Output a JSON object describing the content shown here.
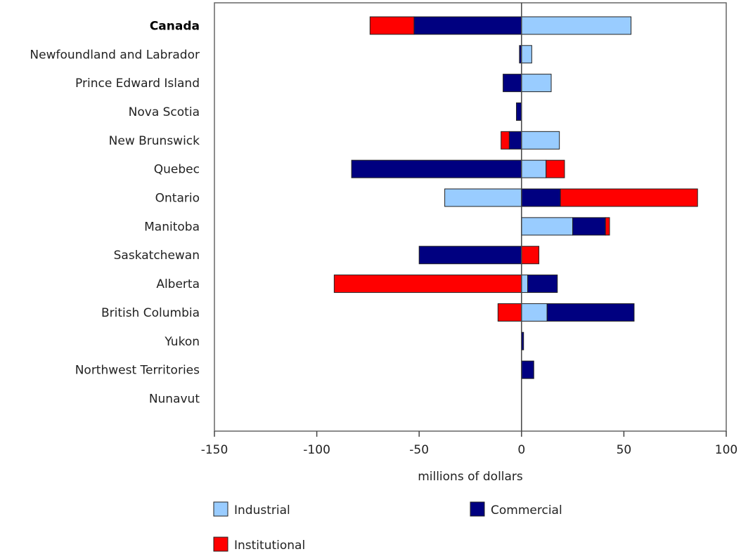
{
  "chart_data": {
    "type": "bar",
    "orientation": "horizontal",
    "stacked": true,
    "diverging": true,
    "title": "",
    "xlabel": "millions of dollars",
    "ylabel": "",
    "xlim": [
      -150,
      100
    ],
    "xticks": [
      -150,
      -100,
      -50,
      0,
      50,
      100
    ],
    "xtick_labels": [
      "-150",
      "-100",
      "-50",
      "0",
      "50",
      "100"
    ],
    "grid": false,
    "legend_position": "bottom",
    "categories": [
      "Canada",
      "Newfoundland and Labrador",
      "Prince Edward Island",
      "Nova Scotia",
      "New Brunswick",
      "Quebec",
      "Ontario",
      "Manitoba",
      "Saskatchewan",
      "Alberta",
      "British Columbia",
      "Yukon",
      "Northwest Territories",
      "Nunavut"
    ],
    "bold_categories": [
      "Canada"
    ],
    "series": [
      {
        "name": "Industrial",
        "color": "#99ccff",
        "values": [
          53.5,
          5,
          14.5,
          0,
          18.5,
          12,
          -37.5,
          25,
          0,
          3,
          12.5,
          0,
          0,
          0
        ]
      },
      {
        "name": "Commercial",
        "color": "#000080",
        "values": [
          -52.5,
          -1,
          -9,
          -2.5,
          -6,
          -83,
          19,
          16,
          -50,
          14.5,
          42.5,
          1,
          6,
          0
        ]
      },
      {
        "name": "Institutional",
        "color": "#ff0000",
        "values": [
          -21.5,
          0,
          0,
          0,
          -4,
          9,
          67,
          2,
          8.5,
          -91.5,
          -11.5,
          0,
          0,
          0
        ]
      }
    ]
  }
}
